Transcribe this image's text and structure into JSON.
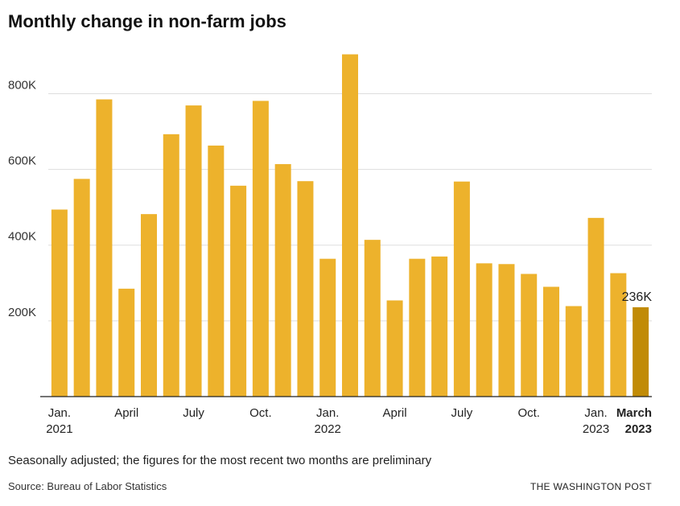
{
  "title": "Monthly change in non-farm jobs",
  "note": "Seasonally adjusted; the figures for the most recent two months are preliminary",
  "source": "Source: Bureau of Labor Statistics",
  "credit": "THE WASHINGTON POST",
  "colors": {
    "bar": "#edb22c",
    "highlight": "#c18b06",
    "grid": "#dddddd",
    "axis": "#222222"
  },
  "chart_data": {
    "type": "bar",
    "title": "Monthly change in non-farm jobs",
    "categories": [
      "2021-01",
      "2021-02",
      "2021-03",
      "2021-04",
      "2021-05",
      "2021-06",
      "2021-07",
      "2021-08",
      "2021-09",
      "2021-10",
      "2021-11",
      "2021-12",
      "2022-01",
      "2022-02",
      "2022-03",
      "2022-04",
      "2022-05",
      "2022-06",
      "2022-07",
      "2022-08",
      "2022-09",
      "2022-10",
      "2022-11",
      "2022-12",
      "2023-01",
      "2023-02",
      "2023-03"
    ],
    "values": [
      494000,
      575000,
      785000,
      285000,
      482000,
      693000,
      769000,
      663000,
      557000,
      781000,
      614000,
      569000,
      364000,
      904000,
      414000,
      254000,
      364000,
      370000,
      568000,
      352000,
      350000,
      324000,
      290000,
      239000,
      472000,
      326000,
      236000
    ],
    "ylim": [
      0,
      920000
    ],
    "yticks": [
      200000,
      400000,
      600000,
      800000
    ],
    "ytick_labels": [
      "200K",
      "400K",
      "600K",
      "800K"
    ],
    "xtick_labels": [
      {
        "index": 0,
        "line1": "Jan.",
        "line2": "2021",
        "bold": false
      },
      {
        "index": 3,
        "line1": "April",
        "line2": "",
        "bold": false
      },
      {
        "index": 6,
        "line1": "July",
        "line2": "",
        "bold": false
      },
      {
        "index": 9,
        "line1": "Oct.",
        "line2": "",
        "bold": false
      },
      {
        "index": 12,
        "line1": "Jan.",
        "line2": "2022",
        "bold": false
      },
      {
        "index": 15,
        "line1": "April",
        "line2": "",
        "bold": false
      },
      {
        "index": 18,
        "line1": "July",
        "line2": "",
        "bold": false
      },
      {
        "index": 21,
        "line1": "Oct.",
        "line2": "",
        "bold": false
      },
      {
        "index": 24,
        "line1": "Jan.",
        "line2": "2023",
        "bold": false
      },
      {
        "index": 26,
        "line1": "March",
        "line2": "2023",
        "bold": true
      }
    ],
    "highlight_index": 26,
    "annotations": [
      {
        "index": 26,
        "text": "236K"
      }
    ],
    "grid": true
  }
}
